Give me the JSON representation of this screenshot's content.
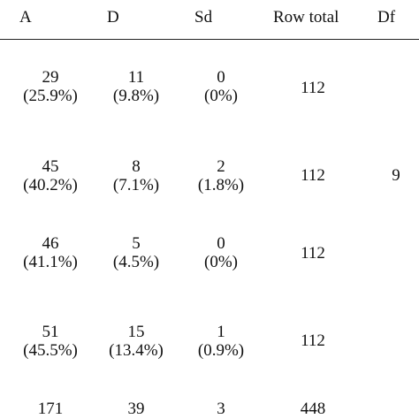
{
  "headers": {
    "a": "A",
    "d": "D",
    "sd": "Sd",
    "row_total": "Row total",
    "df": "Df"
  },
  "rows": [
    {
      "a_count": "29",
      "a_pct": "(25.9%)",
      "d_count": "11",
      "d_pct": "(9.8%)",
      "sd_count": "0",
      "sd_pct": "(0%)",
      "row_total": "112"
    },
    {
      "a_count": "45",
      "a_pct": "(40.2%)",
      "d_count": "8",
      "d_pct": "(7.1%)",
      "sd_count": "2",
      "sd_pct": "(1.8%)",
      "row_total": "112"
    },
    {
      "a_count": "46",
      "a_pct": "(41.1%)",
      "d_count": "5",
      "d_pct": "(4.5%)",
      "sd_count": "0",
      "sd_pct": "(0%)",
      "row_total": "112"
    },
    {
      "a_count": "51",
      "a_pct": "(45.5%)",
      "d_count": "15",
      "d_pct": "(13.4%)",
      "sd_count": "1",
      "sd_pct": "(0.9%)",
      "row_total": "112"
    }
  ],
  "totals": {
    "a": "171",
    "d": "39",
    "sd": "3",
    "row_total": "448"
  },
  "df": "9"
}
